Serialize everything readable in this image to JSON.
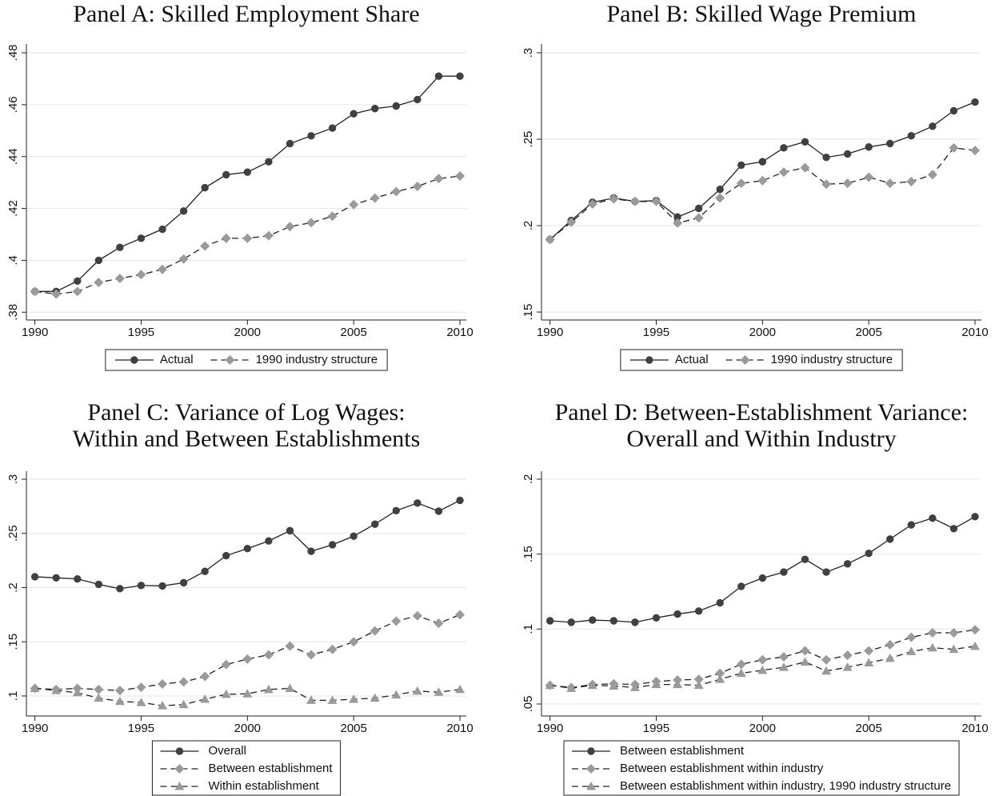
{
  "chart_data": [
    {
      "type": "line",
      "title": [
        "Panel A: Skilled Employment Share"
      ],
      "x": [
        1990,
        1991,
        1992,
        1993,
        1994,
        1995,
        1996,
        1997,
        1998,
        1999,
        2000,
        2001,
        2002,
        2003,
        2004,
        2005,
        2006,
        2007,
        2008,
        2009,
        2010
      ],
      "xlim": [
        1989.6,
        2010.3
      ],
      "xticks": [
        1990,
        1995,
        2000,
        2005,
        2010
      ],
      "ylim": [
        0.377,
        0.4834
      ],
      "yticks": [
        {
          "value": 0.38,
          "label": ".38"
        },
        {
          "value": 0.4,
          "label": ".4"
        },
        {
          "value": 0.42,
          "label": ".42"
        },
        {
          "value": 0.44,
          "label": ".44"
        },
        {
          "value": 0.46,
          "label": ".46"
        },
        {
          "value": 0.48,
          "label": ".48"
        }
      ],
      "grid": true,
      "legend": "bottom",
      "legend_layout": "row",
      "series": [
        {
          "name": "Actual",
          "color": "#404040",
          "line_color": "#202020",
          "marker": "circle",
          "dash": false,
          "values": [
            0.388,
            0.388,
            0.392,
            0.4,
            0.405,
            0.4085,
            0.412,
            0.419,
            0.428,
            0.433,
            0.434,
            0.438,
            0.445,
            0.448,
            0.451,
            0.4565,
            0.4585,
            0.4595,
            0.462,
            0.471,
            0.471
          ]
        },
        {
          "name": "1990 industry structure",
          "color": "#9a9a9a",
          "line_color": "#202020",
          "marker": "diamond",
          "dash": true,
          "values": [
            0.388,
            0.387,
            0.388,
            0.3915,
            0.393,
            0.3945,
            0.3965,
            0.4005,
            0.4055,
            0.4085,
            0.4085,
            0.4095,
            0.413,
            0.4145,
            0.417,
            0.4215,
            0.424,
            0.4265,
            0.4285,
            0.4315,
            0.4325
          ]
        }
      ]
    },
    {
      "type": "line",
      "title": [
        "Panel B: Skilled Wage Premium"
      ],
      "x": [
        1990,
        1991,
        1992,
        1993,
        1994,
        1995,
        1996,
        1997,
        1998,
        1999,
        2000,
        2001,
        2002,
        2003,
        2004,
        2005,
        2006,
        2007,
        2008,
        2009,
        2010
      ],
      "xlim": [
        1989.6,
        2010.3
      ],
      "xticks": [
        1990,
        1995,
        2000,
        2005,
        2010
      ],
      "ylim": [
        0.1454,
        0.3051
      ],
      "yticks": [
        {
          "value": 0.15,
          "label": ".15"
        },
        {
          "value": 0.2,
          "label": ".2"
        },
        {
          "value": 0.25,
          "label": ".25"
        },
        {
          "value": 0.3,
          "label": ".3"
        }
      ],
      "grid": true,
      "legend": "bottom",
      "legend_layout": "row",
      "series": [
        {
          "name": "Actual",
          "color": "#404040",
          "line_color": "#202020",
          "marker": "circle",
          "dash": false,
          "values": [
            0.192,
            0.203,
            0.2135,
            0.216,
            0.214,
            0.2145,
            0.205,
            0.21,
            0.221,
            0.235,
            0.237,
            0.245,
            0.2485,
            0.2395,
            0.2415,
            0.2455,
            0.2475,
            0.252,
            0.2575,
            0.2665,
            0.2715
          ]
        },
        {
          "name": "1990 industry structure",
          "color": "#9a9a9a",
          "line_color": "#202020",
          "marker": "diamond",
          "dash": true,
          "values": [
            0.192,
            0.202,
            0.2125,
            0.2155,
            0.214,
            0.214,
            0.2015,
            0.2045,
            0.216,
            0.2245,
            0.226,
            0.231,
            0.2335,
            0.224,
            0.2245,
            0.228,
            0.2245,
            0.2255,
            0.2295,
            0.245,
            0.2435
          ]
        }
      ]
    },
    {
      "type": "line",
      "title": [
        "Panel C: Variance of Log Wages:",
        "Within and Between Establishments"
      ],
      "x": [
        1990,
        1991,
        1992,
        1993,
        1994,
        1995,
        1996,
        1997,
        1998,
        1999,
        2000,
        2001,
        2002,
        2003,
        2004,
        2005,
        2006,
        2007,
        2008,
        2009,
        2010
      ],
      "xlim": [
        1989.6,
        2010.3
      ],
      "xticks": [
        1990,
        1995,
        2000,
        2005,
        2010
      ],
      "ylim": [
        0.0815,
        0.3074
      ],
      "yticks": [
        {
          "value": 0.1,
          "label": ".1"
        },
        {
          "value": 0.15,
          "label": ".15"
        },
        {
          "value": 0.2,
          "label": ".2"
        },
        {
          "value": 0.25,
          "label": ".25"
        },
        {
          "value": 0.3,
          "label": ".3"
        }
      ],
      "grid": true,
      "legend": "bottom",
      "legend_layout": "column",
      "series": [
        {
          "name": "Overall",
          "color": "#404040",
          "line_color": "#202020",
          "marker": "circle",
          "dash": false,
          "values": [
            0.21,
            0.209,
            0.208,
            0.203,
            0.199,
            0.202,
            0.2015,
            0.2045,
            0.215,
            0.2295,
            0.236,
            0.243,
            0.2525,
            0.2335,
            0.2395,
            0.2475,
            0.2585,
            0.271,
            0.278,
            0.2705,
            0.2805
          ]
        },
        {
          "name": "Between establishment",
          "color": "#9a9a9a",
          "line_color": "#202020",
          "marker": "diamond",
          "dash": true,
          "values": [
            0.107,
            0.106,
            0.107,
            0.106,
            0.105,
            0.108,
            0.111,
            0.113,
            0.118,
            0.129,
            0.134,
            0.138,
            0.146,
            0.138,
            0.143,
            0.15,
            0.16,
            0.169,
            0.174,
            0.167,
            0.175
          ]
        },
        {
          "name": "Within establishment",
          "color": "#9a9a9a",
          "line_color": "#202020",
          "marker": "triangle",
          "dash": true,
          "values": [
            0.107,
            0.105,
            0.103,
            0.098,
            0.095,
            0.094,
            0.091,
            0.092,
            0.097,
            0.1015,
            0.102,
            0.106,
            0.107,
            0.096,
            0.096,
            0.097,
            0.098,
            0.101,
            0.1045,
            0.1035,
            0.106
          ]
        }
      ]
    },
    {
      "type": "line",
      "title": [
        "Panel D: Between-Establishment Variance:",
        "Overall and Within Industry"
      ],
      "x": [
        1990,
        1991,
        1992,
        1993,
        1994,
        1995,
        1996,
        1997,
        1998,
        1999,
        2000,
        2001,
        2002,
        2003,
        2004,
        2005,
        2006,
        2007,
        2008,
        2009,
        2010
      ],
      "xlim": [
        1989.6,
        2010.3
      ],
      "xticks": [
        1990,
        1995,
        2000,
        2005,
        2010
      ],
      "ylim": [
        0.042,
        0.2053
      ],
      "yticks": [
        {
          "value": 0.05,
          "label": ".05"
        },
        {
          "value": 0.1,
          "label": ".1"
        },
        {
          "value": 0.15,
          "label": ".15"
        },
        {
          "value": 0.2,
          "label": ".2"
        }
      ],
      "grid": true,
      "legend": "bottom",
      "legend_layout": "column",
      "series": [
        {
          "name": "Between establishment",
          "color": "#404040",
          "line_color": "#202020",
          "marker": "circle",
          "dash": false,
          "values": [
            0.1055,
            0.1045,
            0.106,
            0.1055,
            0.1045,
            0.1075,
            0.11,
            0.112,
            0.1175,
            0.1285,
            0.134,
            0.138,
            0.1465,
            0.138,
            0.1435,
            0.1505,
            0.16,
            0.1695,
            0.174,
            0.167,
            0.175
          ]
        },
        {
          "name": "Between establishment within industry",
          "color": "#9a9a9a",
          "line_color": "#202020",
          "marker": "diamond",
          "dash": true,
          "values": [
            0.0625,
            0.061,
            0.063,
            0.0635,
            0.063,
            0.065,
            0.066,
            0.0665,
            0.0705,
            0.0765,
            0.0795,
            0.0815,
            0.0855,
            0.0795,
            0.0825,
            0.0855,
            0.0895,
            0.0945,
            0.0975,
            0.0975,
            0.0995
          ]
        },
        {
          "name": "Between establishment within industry, 1990 industry structure",
          "color": "#9a9a9a",
          "line_color": "#202020",
          "marker": "triangle",
          "dash": true,
          "values": [
            0.0625,
            0.0605,
            0.0625,
            0.062,
            0.061,
            0.063,
            0.063,
            0.0625,
            0.0665,
            0.0705,
            0.0725,
            0.0745,
            0.078,
            0.072,
            0.0745,
            0.0775,
            0.0805,
            0.085,
            0.0875,
            0.0865,
            0.0885
          ]
        }
      ]
    }
  ]
}
